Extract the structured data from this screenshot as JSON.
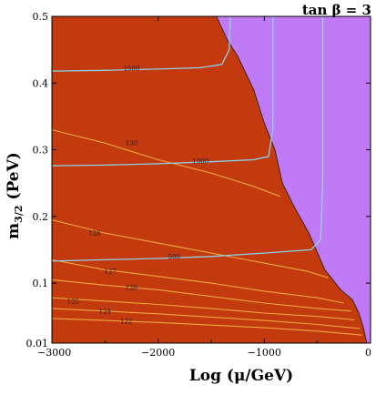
{
  "chart_data": {
    "type": "contour",
    "annotation": "tan β = 3",
    "xlabel_main": "Log (μ/GeV)",
    "ylabel_main": "m",
    "ylabel_sub": "3/2",
    "ylabel_unit": " (PeV)",
    "xlim": [
      -3000,
      0
    ],
    "ylim": [
      0.01,
      0.5
    ],
    "x_ticks": [
      {
        "value": -3000,
        "label": "−3000"
      },
      {
        "value": -2000,
        "label": "−2000"
      },
      {
        "value": -1000,
        "label": "−1000"
      },
      {
        "value": 0,
        "label": "0"
      }
    ],
    "y_ticks": [
      {
        "value": 0.01,
        "label": "0.01"
      },
      {
        "value": 0.1,
        "label": "0.1"
      },
      {
        "value": 0.2,
        "label": "0.2"
      },
      {
        "value": 0.3,
        "label": "0.3"
      },
      {
        "value": 0.4,
        "label": "0.4"
      },
      {
        "value": 0.5,
        "label": "0.5"
      }
    ],
    "regions": [
      {
        "name": "allowed",
        "color": "#c23a0e"
      },
      {
        "name": "excluded",
        "color": "#c07af5"
      }
    ],
    "boundary": [
      [
        -1450,
        0.5
      ],
      [
        -1350,
        0.465
      ],
      [
        -1250,
        0.44
      ],
      [
        -1100,
        0.39
      ],
      [
        -1000,
        0.34
      ],
      [
        -900,
        0.3
      ],
      [
        -830,
        0.25
      ],
      [
        -720,
        0.215
      ],
      [
        -580,
        0.175
      ],
      [
        -430,
        0.12
      ],
      [
        -280,
        0.09
      ],
      [
        -170,
        0.075
      ],
      [
        -110,
        0.055
      ],
      [
        -70,
        0.035
      ],
      [
        -35,
        0.01
      ]
    ],
    "cyan_contours": [
      {
        "label": "1500",
        "label_at": [
          -2250,
          0.422
        ],
        "points": [
          [
            -3000,
            0.418
          ],
          [
            -2500,
            0.419
          ],
          [
            -2000,
            0.421
          ],
          [
            -1600,
            0.423
          ],
          [
            -1400,
            0.428
          ],
          [
            -1330,
            0.45
          ],
          [
            -1320,
            0.5
          ]
        ]
      },
      {
        "label": "1000",
        "label_at": [
          -1600,
          0.283
        ],
        "points": [
          [
            -3000,
            0.276
          ],
          [
            -2500,
            0.277
          ],
          [
            -2000,
            0.279
          ],
          [
            -1500,
            0.282
          ],
          [
            -1100,
            0.285
          ],
          [
            -960,
            0.29
          ],
          [
            -920,
            0.33
          ],
          [
            -920,
            0.5
          ]
        ]
      },
      {
        "label": "500",
        "label_at": [
          -1850,
          0.14
        ],
        "points": [
          [
            -3000,
            0.133
          ],
          [
            -2500,
            0.135
          ],
          [
            -2000,
            0.137
          ],
          [
            -1500,
            0.14
          ],
          [
            -1000,
            0.145
          ],
          [
            -560,
            0.15
          ],
          [
            -470,
            0.165
          ],
          [
            -450,
            0.25
          ],
          [
            -450,
            0.5
          ]
        ]
      }
    ],
    "orange_contours": [
      {
        "label": "130",
        "label_at": [
          -2250,
          0.31
        ],
        "points": [
          [
            -3000,
            0.33
          ],
          [
            -2500,
            0.31
          ],
          [
            -2000,
            0.285
          ],
          [
            -1500,
            0.265
          ],
          [
            -1100,
            0.245
          ],
          [
            -850,
            0.23
          ]
        ]
      },
      {
        "label": "128",
        "label_at": [
          -2600,
          0.175
        ],
        "points": [
          [
            -3000,
            0.195
          ],
          [
            -2500,
            0.175
          ],
          [
            -2000,
            0.16
          ],
          [
            -1500,
            0.145
          ],
          [
            -1000,
            0.13
          ],
          [
            -600,
            0.118
          ],
          [
            -400,
            0.108
          ]
        ]
      },
      {
        "label": "127",
        "label_at": [
          -2450,
          0.118
        ],
        "points": [
          [
            -3000,
            0.135
          ],
          [
            -2500,
            0.12
          ],
          [
            -2000,
            0.11
          ],
          [
            -1500,
            0.1
          ],
          [
            -1000,
            0.088
          ],
          [
            -500,
            0.078
          ],
          [
            -250,
            0.07
          ]
        ]
      },
      {
        "label": "126",
        "label_at": [
          -2250,
          0.093
        ],
        "points": [
          [
            -3000,
            0.105
          ],
          [
            -2500,
            0.097
          ],
          [
            -2000,
            0.09
          ],
          [
            -1500,
            0.08
          ],
          [
            -1000,
            0.07
          ],
          [
            -500,
            0.062
          ],
          [
            -180,
            0.058
          ]
        ]
      },
      {
        "label": "125",
        "label_at": [
          -2800,
          0.073
        ],
        "points": [
          [
            -3000,
            0.078
          ],
          [
            -2500,
            0.073
          ],
          [
            -2000,
            0.068
          ],
          [
            -1500,
            0.062
          ],
          [
            -1000,
            0.055
          ],
          [
            -500,
            0.05
          ],
          [
            -150,
            0.045
          ]
        ]
      },
      {
        "label": "124",
        "label_at": [
          -2500,
          0.058
        ],
        "points": [
          [
            -3000,
            0.062
          ],
          [
            -2500,
            0.058
          ],
          [
            -2000,
            0.054
          ],
          [
            -1500,
            0.049
          ],
          [
            -1000,
            0.044
          ],
          [
            -500,
            0.038
          ],
          [
            -100,
            0.032
          ]
        ]
      },
      {
        "label": "122",
        "label_at": [
          -2300,
          0.043
        ],
        "points": [
          [
            -3000,
            0.047
          ],
          [
            -2500,
            0.044
          ],
          [
            -2000,
            0.041
          ],
          [
            -1500,
            0.037
          ],
          [
            -1000,
            0.033
          ],
          [
            -500,
            0.028
          ],
          [
            -80,
            0.022
          ]
        ]
      }
    ]
  }
}
